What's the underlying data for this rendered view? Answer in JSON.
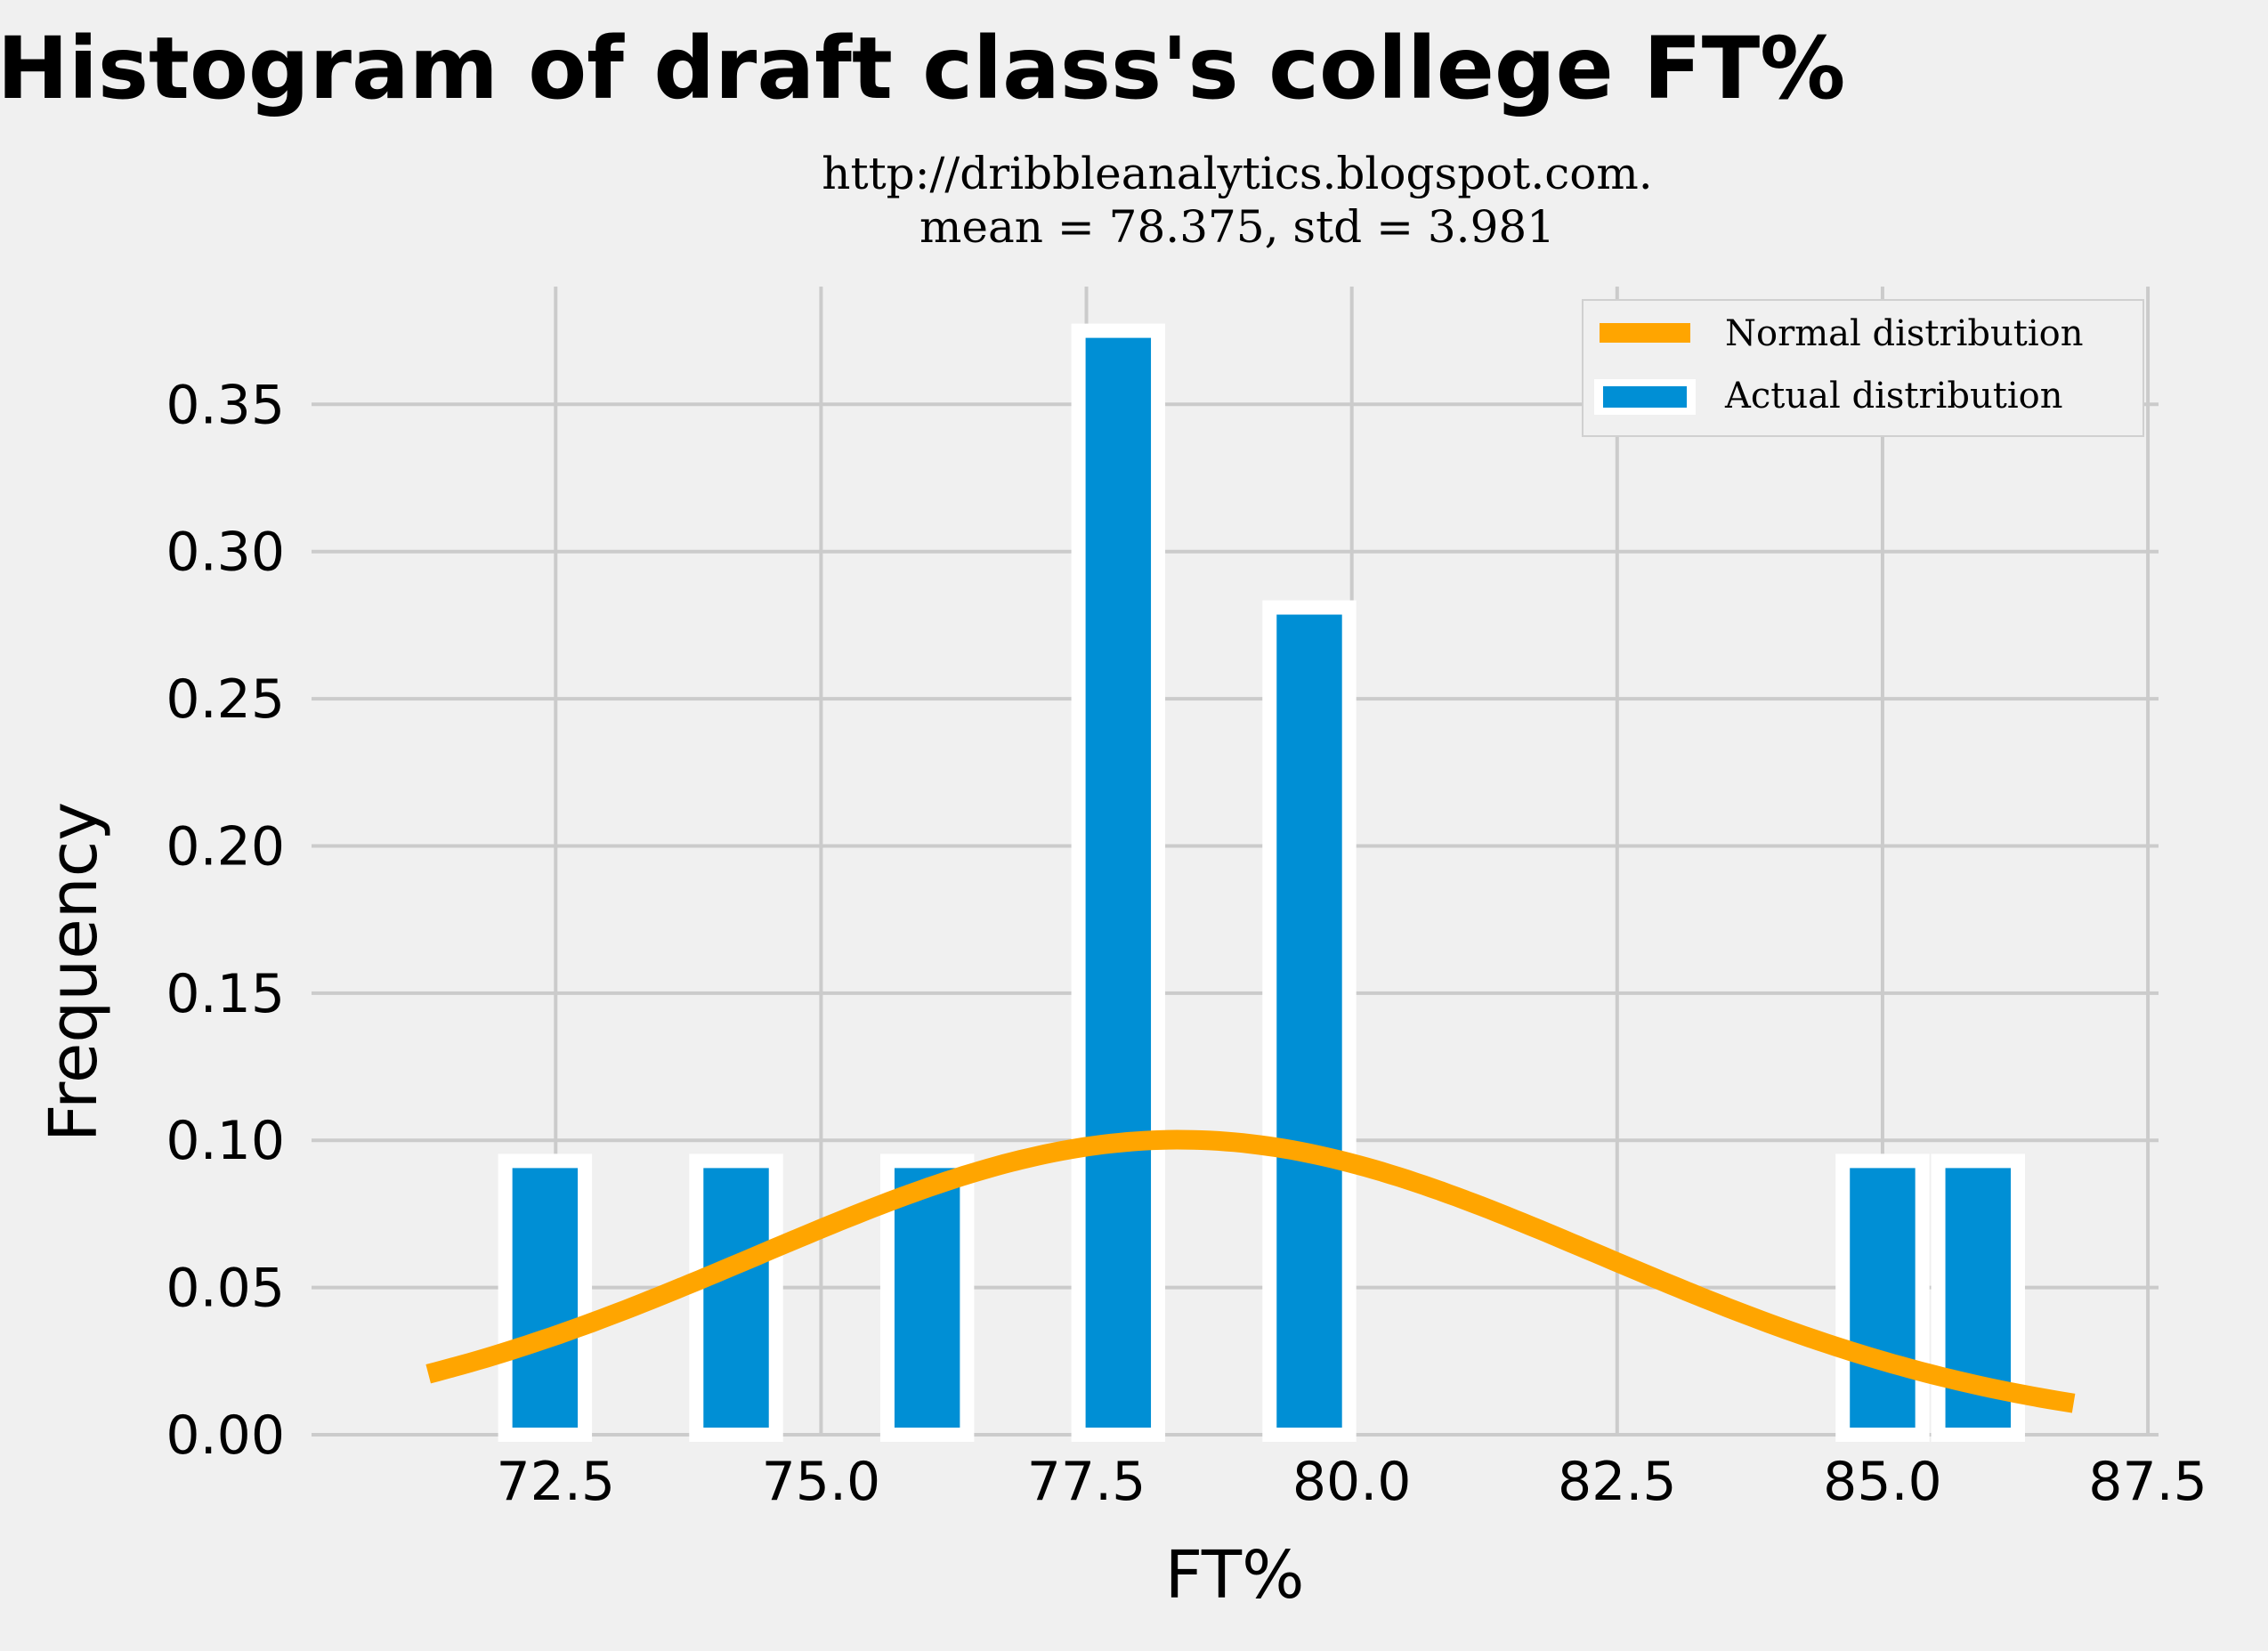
{
  "chart_data": {
    "type": "bar",
    "title": "Histogram of draft class's college FT%",
    "subtitle": [
      "http://dribbleanalytics.blogspot.com.",
      "mean = 78.375, std = 3.981"
    ],
    "xlabel": "FT%",
    "ylabel": "Frequency",
    "xlim": [
      70.2,
      87.6
    ],
    "ylim": [
      0,
      0.39
    ],
    "xticks": [
      "72.5",
      "75.0",
      "77.5",
      "80.0",
      "82.5",
      "85.0",
      "87.5"
    ],
    "yticks": [
      "0.00",
      "0.05",
      "0.10",
      "0.15",
      "0.20",
      "0.25",
      "0.30",
      "0.35"
    ],
    "grid": true,
    "legend_position": "top-right",
    "series": [
      {
        "name": "Actual distribution",
        "kind": "bar",
        "color": "#008fd5",
        "edge_color": "#ffffff",
        "bars": [
          {
            "x": 72.4,
            "value": 0.093
          },
          {
            "x": 74.2,
            "value": 0.093
          },
          {
            "x": 76.0,
            "value": 0.093
          },
          {
            "x": 77.8,
            "value": 0.375
          },
          {
            "x": 79.6,
            "value": 0.281
          },
          {
            "x": 85.0,
            "value": 0.093
          },
          {
            "x": 85.9,
            "value": 0.093
          }
        ],
        "bar_width": 0.75
      },
      {
        "name": "Normal distribution",
        "kind": "line",
        "color": "#ffa500",
        "mean": 78.375,
        "std": 3.981,
        "x_range": [
          71.3,
          86.8
        ]
      }
    ]
  }
}
